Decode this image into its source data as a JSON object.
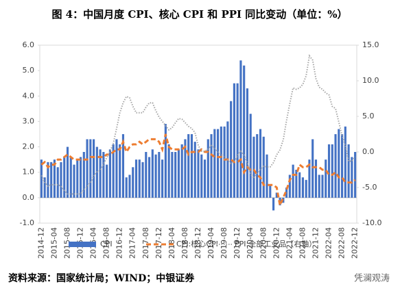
{
  "chart_data": {
    "type": "bar-line",
    "title": "图 4：中国月度 CPI、核心 CPI 和 PPI 同比变动（单位：%）",
    "source": "资料来源：国家统计局；WIND；中银证券",
    "watermark": "凭澜观涛",
    "legend": "bottom",
    "grid": false,
    "categories": [
      "2014-12",
      null,
      null,
      null,
      "2015-04",
      null,
      null,
      null,
      "2015-08",
      null,
      null,
      null,
      "2015-12",
      null,
      null,
      null,
      "2016-04",
      null,
      null,
      null,
      "2016-08",
      null,
      null,
      null,
      "2016-12",
      null,
      null,
      null,
      "2017-04",
      null,
      null,
      null,
      "2017-08",
      null,
      null,
      null,
      "2017-12",
      null,
      null,
      null,
      "2018-04",
      null,
      null,
      null,
      "2018-08",
      null,
      null,
      null,
      "2018-12",
      null,
      null,
      null,
      "2019-04",
      null,
      null,
      null,
      "2019-08",
      null,
      null,
      null,
      "2019-12",
      null,
      null,
      null,
      "2020-04",
      null,
      null,
      null,
      "2020-08",
      null,
      null,
      null,
      "2020-12",
      null,
      null,
      null,
      "2021-04",
      null,
      null,
      null,
      "2021-08",
      null,
      null,
      null,
      "2021-12",
      null,
      null,
      null,
      "2022-04",
      null,
      null,
      null,
      "2022-08",
      null,
      null,
      null,
      "2022-12"
    ],
    "ylim": [
      -1,
      6
    ],
    "yticks": [
      {
        "value": -1,
        "label": "-1.0"
      },
      {
        "value": 0,
        "label": "0.0"
      },
      {
        "value": 1,
        "label": "1.0"
      },
      {
        "value": 2,
        "label": "2.0"
      },
      {
        "value": 3,
        "label": "3.0"
      },
      {
        "value": 4,
        "label": "4.0"
      },
      {
        "value": 5,
        "label": "5.0"
      },
      {
        "value": 6,
        "label": "6.0"
      }
    ],
    "y2lim": [
      -10,
      15
    ],
    "y2ticks": [
      {
        "value": -10,
        "label": "-10.0"
      },
      {
        "value": -5,
        "label": "-5.0"
      },
      {
        "value": 0,
        "label": "0.0"
      },
      {
        "value": 5,
        "label": "5.0"
      },
      {
        "value": 10,
        "label": "10.0"
      },
      {
        "value": 15,
        "label": "15.0"
      }
    ],
    "series": [
      {
        "name": "CPI",
        "kind": "bar",
        "color": "#4472c4",
        "values": [
          1.5,
          0.8,
          1.4,
          1.4,
          1.5,
          1.2,
          1.4,
          1.6,
          2.0,
          1.6,
          1.3,
          1.5,
          1.6,
          1.8,
          2.3,
          2.3,
          2.3,
          2.0,
          1.9,
          1.8,
          1.3,
          1.9,
          2.1,
          2.3,
          2.1,
          2.5,
          0.8,
          0.9,
          1.2,
          1.5,
          1.5,
          1.4,
          1.8,
          1.6,
          1.9,
          1.7,
          1.8,
          1.5,
          2.9,
          2.1,
          1.8,
          1.8,
          1.9,
          2.1,
          2.3,
          2.5,
          2.5,
          2.2,
          1.9,
          1.7,
          1.5,
          2.3,
          2.5,
          2.7,
          2.7,
          2.8,
          2.8,
          3.0,
          3.8,
          4.5,
          4.5,
          5.4,
          5.2,
          4.3,
          3.3,
          2.4,
          2.5,
          2.7,
          2.4,
          1.7,
          0.5,
          -0.5,
          0.2,
          -0.3,
          -0.2,
          0.4,
          0.9,
          1.3,
          1.1,
          1.0,
          0.8,
          0.7,
          1.5,
          2.3,
          1.5,
          0.9,
          0.9,
          1.5,
          2.1,
          2.1,
          2.5,
          2.7,
          2.5,
          2.8,
          2.1,
          1.6,
          1.8
        ]
      },
      {
        "name": "CPI:核心CPI",
        "kind": "line-dash",
        "color": "#ed7d31",
        "values": [
          1.3,
          1.4,
          1.2,
          1.3,
          1.3,
          1.5,
          1.5,
          1.6,
          1.7,
          1.6,
          1.5,
          1.5,
          1.5,
          1.5,
          1.5,
          1.6,
          1.6,
          1.6,
          1.6,
          1.6,
          1.7,
          1.7,
          1.8,
          1.9,
          1.9,
          2.2,
          1.8,
          2.0,
          2.1,
          2.1,
          2.2,
          2.1,
          2.2,
          2.3,
          2.3,
          2.3,
          2.2,
          1.9,
          2.5,
          2.0,
          1.9,
          1.9,
          1.9,
          1.9,
          2.0,
          1.7,
          1.8,
          1.8,
          1.8,
          1.9,
          1.8,
          1.8,
          1.7,
          1.6,
          1.6,
          1.6,
          1.5,
          1.5,
          1.5,
          1.4,
          1.4,
          1.5,
          1.0,
          1.2,
          1.1,
          1.1,
          0.9,
          0.8,
          0.5,
          0.5,
          0.5,
          0.5,
          0.4,
          -0.3,
          0.0,
          0.3,
          0.7,
          0.9,
          0.9,
          1.3,
          1.2,
          1.2,
          1.3,
          1.2,
          1.2,
          1.2,
          1.1,
          1.1,
          0.9,
          0.9,
          1.0,
          0.8,
          0.8,
          0.6,
          0.6,
          0.6,
          0.7
        ]
      },
      {
        "name": "PPI:全部工业品（右轴）",
        "kind": "line-dot",
        "axis": "y2",
        "color": "#a5a5a5",
        "values": [
          -3.3,
          -4.3,
          -4.8,
          -4.6,
          -4.6,
          -4.6,
          -4.8,
          -5.4,
          -5.9,
          -5.9,
          -5.9,
          -5.9,
          -5.9,
          -5.3,
          -4.9,
          -4.3,
          -3.4,
          -2.8,
          -2.6,
          -1.7,
          -0.8,
          0.1,
          1.2,
          3.3,
          5.5,
          6.9,
          7.8,
          7.6,
          6.4,
          5.5,
          5.5,
          5.5,
          6.3,
          6.9,
          6.9,
          5.8,
          4.9,
          4.3,
          3.7,
          3.1,
          3.4,
          4.1,
          4.7,
          4.6,
          4.1,
          3.6,
          3.3,
          2.7,
          0.9,
          0.1,
          0.1,
          0.4,
          0.9,
          0.6,
          0.0,
          -0.3,
          -0.8,
          -1.2,
          -1.6,
          -1.4,
          -0.5,
          0.1,
          -0.4,
          -1.5,
          -3.1,
          -3.7,
          -3.0,
          -2.4,
          -2.0,
          -2.1,
          -2.1,
          -1.5,
          -0.4,
          0.3,
          1.7,
          4.4,
          6.8,
          9.0,
          8.8,
          9.0,
          9.5,
          10.7,
          13.5,
          12.9,
          10.3,
          9.1,
          8.8,
          8.3,
          8.0,
          6.4,
          6.1,
          4.2,
          2.3,
          0.9,
          -1.3,
          -1.3,
          -0.7
        ]
      }
    ]
  }
}
